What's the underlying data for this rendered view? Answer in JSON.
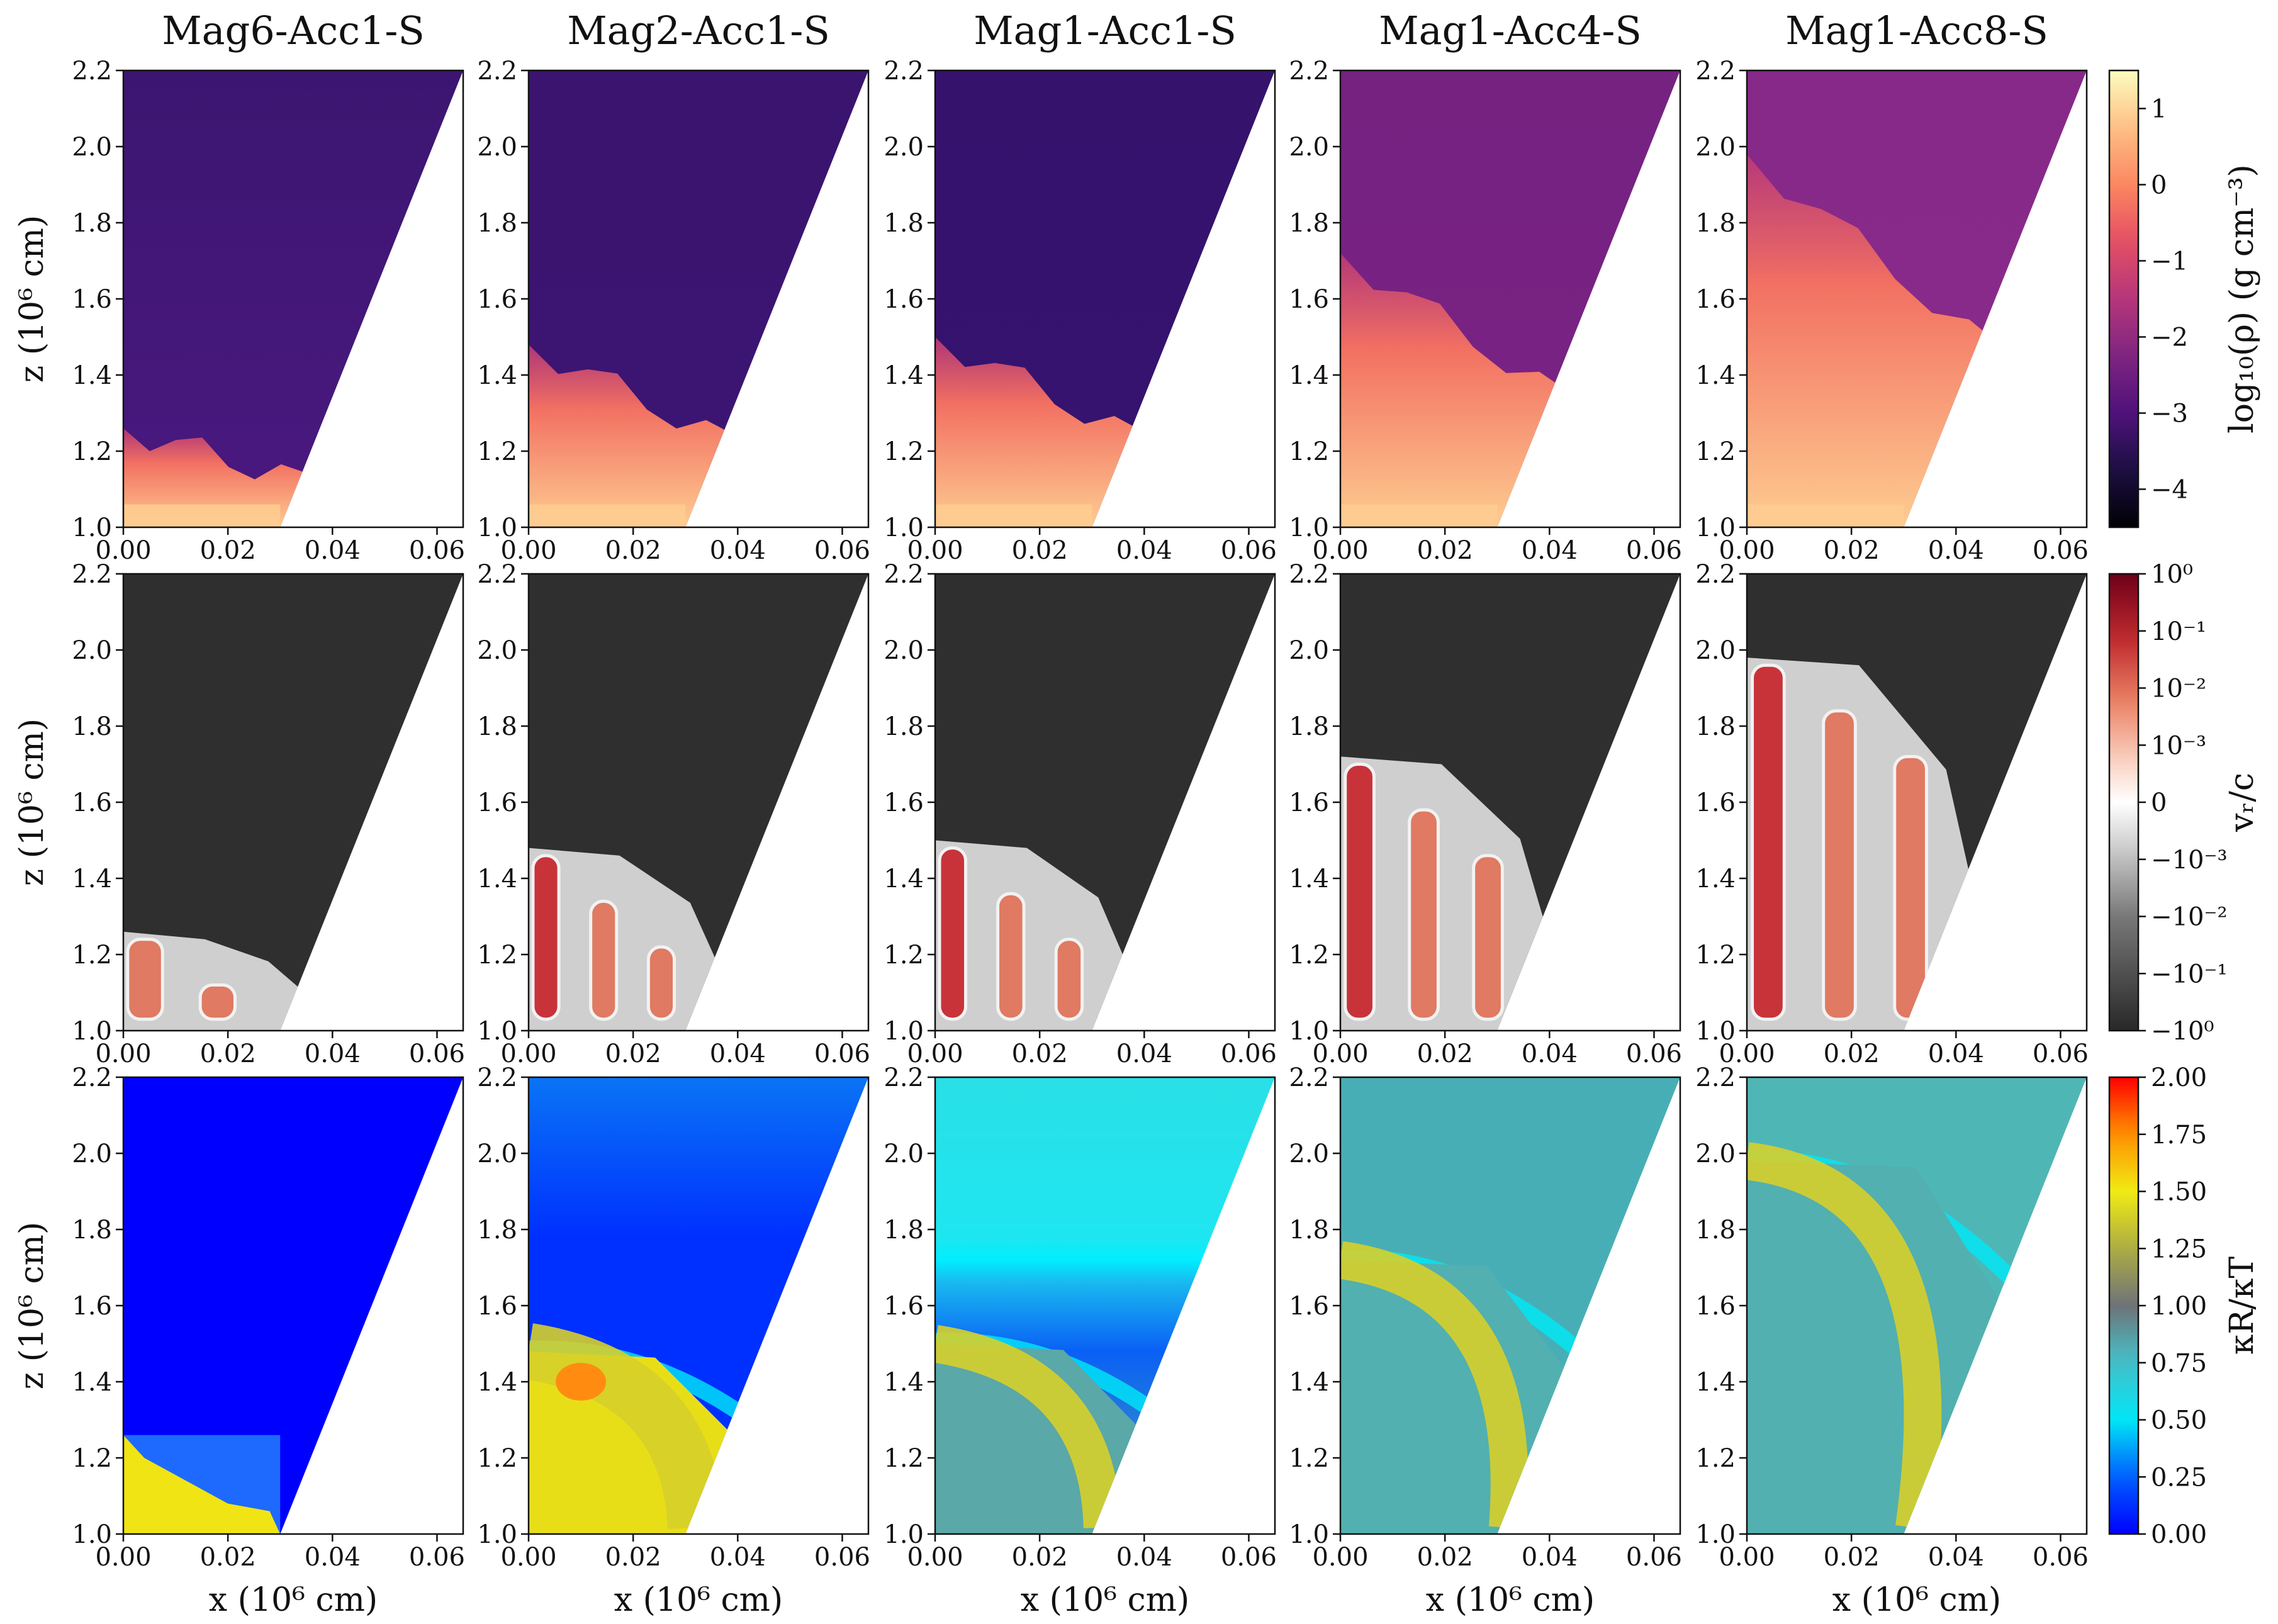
{
  "chart_data": {
    "type": "heatmap",
    "layout": "3x5 panel grid",
    "columns": [
      "Mag6-Acc1-S",
      "Mag2-Acc1-S",
      "Mag1-Acc1-S",
      "Mag1-Acc4-S",
      "Mag1-Acc8-S"
    ],
    "rows": [
      "density",
      "radial velocity",
      "opacity ratio"
    ],
    "x_axis": {
      "label": "x (10⁶ cm)",
      "range": [
        0.0,
        0.065
      ],
      "ticks": [
        "0.00",
        "0.02",
        "0.04",
        "0.06"
      ],
      "tick_values": [
        0.0,
        0.02,
        0.04,
        0.06
      ]
    },
    "y_axis": {
      "label": "z (10⁶ cm)",
      "range": [
        1.0,
        2.2
      ],
      "ticks": [
        "1.0",
        "1.2",
        "1.4",
        "1.6",
        "1.8",
        "2.0",
        "2.2"
      ],
      "tick_values": [
        1.0,
        1.2,
        1.4,
        1.6,
        1.8,
        2.0,
        2.2
      ]
    },
    "domain_boundary": {
      "description": "wedge: white region to the right of the line x = 0.03 + (z-1)*0.0292",
      "x_at_z1": 0.03,
      "x_at_z2_2": 0.065
    },
    "colorbars": [
      {
        "label": "log₁₀(ρ) (g cm⁻³)",
        "cmap": "magma",
        "range": [
          -4.5,
          1.5
        ],
        "ticks": [
          "1",
          "0",
          "−1",
          "−2",
          "−3",
          "−4"
        ],
        "tick_values": [
          1,
          0,
          -1,
          -2,
          -3,
          -4
        ]
      },
      {
        "label": "vᵣ/c",
        "cmap": "RdGy_r (symlog)",
        "range": [
          -1,
          1
        ],
        "ticks": [
          "10⁰",
          "10⁻¹",
          "10⁻²",
          "10⁻³",
          "0",
          "−10⁻³",
          "−10⁻²",
          "−10⁻¹",
          "−10⁰"
        ]
      },
      {
        "label": "κR/κT",
        "cmap": "jet-like diverging",
        "range": [
          0.0,
          2.0
        ],
        "ticks": [
          "2.00",
          "1.75",
          "1.50",
          "1.25",
          "1.00",
          "0.75",
          "0.50",
          "0.25",
          "0.00"
        ],
        "tick_values": [
          2.0,
          1.75,
          1.5,
          1.25,
          1.0,
          0.75,
          0.5,
          0.25,
          0.0
        ]
      }
    ],
    "features": {
      "density_front_height": [
        1.26,
        1.48,
        1.5,
        1.72,
        1.98
      ],
      "note": "approx. height (z) of dense outflow front per column"
    }
  }
}
